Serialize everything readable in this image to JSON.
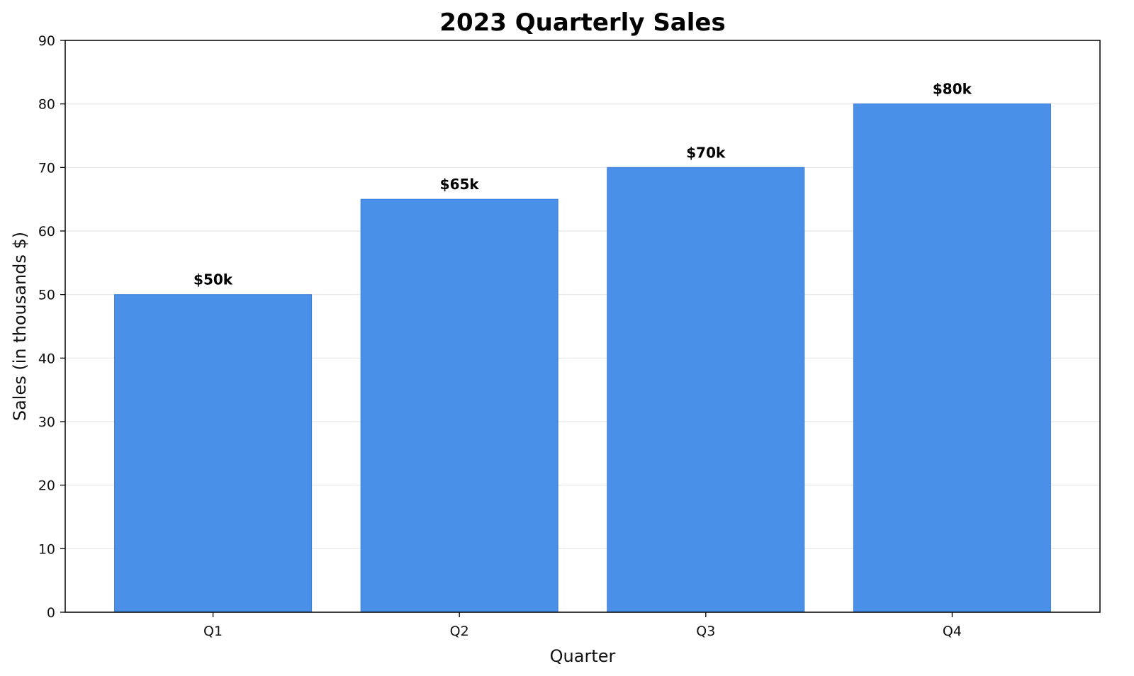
{
  "chart_data": {
    "type": "bar",
    "title": "2023 Quarterly Sales",
    "xlabel": "Quarter",
    "ylabel": "Sales (in thousands $)",
    "categories": [
      "Q1",
      "Q2",
      "Q3",
      "Q4"
    ],
    "values": [
      50,
      65,
      70,
      80
    ],
    "value_labels": [
      "$50k",
      "$65k",
      "$70k",
      "$80k"
    ],
    "ylim": [
      0,
      90
    ],
    "yticks": [
      0,
      10,
      20,
      30,
      40,
      50,
      60,
      70,
      80,
      90
    ],
    "ytick_labels": [
      "0",
      "10",
      "20",
      "30",
      "40",
      "50",
      "60",
      "70",
      "80",
      "90"
    ],
    "grid": "horizontal",
    "legend": "none",
    "colors": {
      "bar": "#4a90e8",
      "bar_edge": "#3f7fd6",
      "grid": "#e6e6e6",
      "axis": "#000000"
    }
  }
}
